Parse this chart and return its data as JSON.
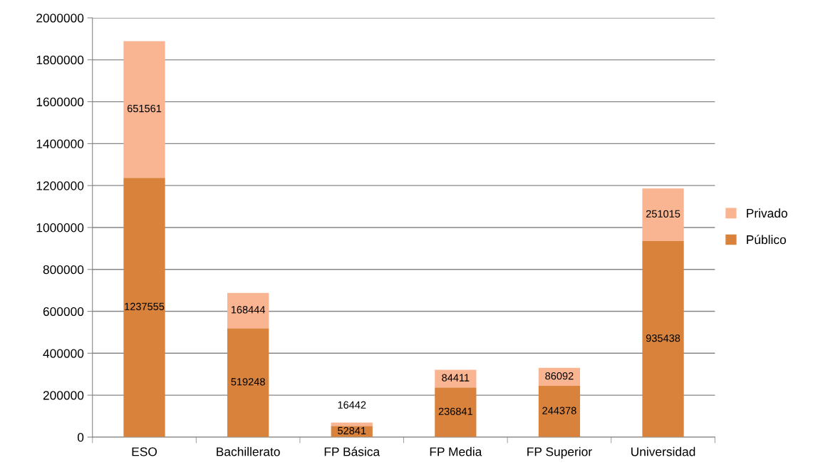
{
  "chart_data": {
    "type": "bar",
    "stacked": true,
    "categories": [
      "ESO",
      "Bachillerato",
      "FP Básica",
      "FP Media",
      "FP Superior",
      "Universidad"
    ],
    "series": [
      {
        "name": "Público",
        "color": "#d8823c",
        "values": [
          1237555,
          519248,
          52841,
          236841,
          244378,
          935438
        ]
      },
      {
        "name": "Privado",
        "color": "#f9b591",
        "values": [
          651561,
          168444,
          16442,
          84411,
          86092,
          251015
        ]
      }
    ],
    "ylim": [
      0,
      2000000
    ],
    "yticks": [
      0,
      200000,
      400000,
      600000,
      800000,
      1000000,
      1200000,
      1400000,
      1600000,
      1800000,
      2000000
    ],
    "grid": "y",
    "legend": "right",
    "data_labels": true
  }
}
